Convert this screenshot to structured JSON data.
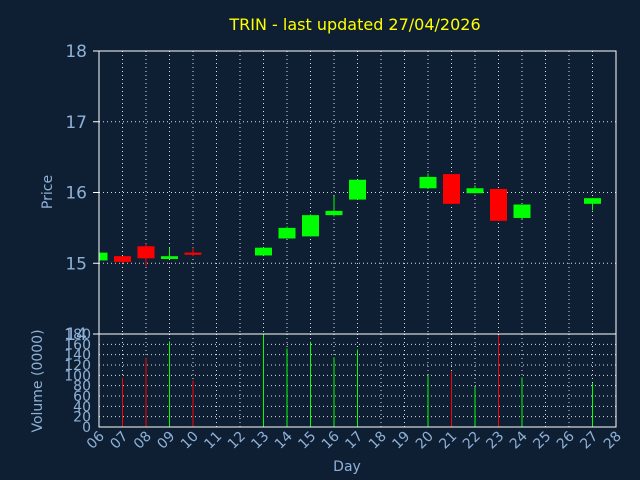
{
  "chart_data": {
    "type": "candlestick",
    "title": "TRIN - last updated 27/04/2026",
    "xlabel": "Day",
    "ylabel": "Price",
    "volume_label": "Volume (0000)",
    "colors": {
      "up": "#00ff00",
      "down": "#ff0000",
      "background": "#0f1f33",
      "title": "#ffff00",
      "text": "#8fb1d6"
    },
    "grid": true,
    "days": [
      "06",
      "07",
      "08",
      "09",
      "10",
      "11",
      "12",
      "13",
      "14",
      "15",
      "16",
      "17",
      "18",
      "19",
      "20",
      "21",
      "22",
      "23",
      "24",
      "25",
      "26",
      "27",
      "28"
    ],
    "price_ylim": [
      14,
      18
    ],
    "price_ticks": [
      "14",
      "15",
      "16",
      "17",
      "18"
    ],
    "volume_ylim": [
      0,
      180
    ],
    "volume_ticks": [
      "0",
      "20",
      "40",
      "60",
      "80",
      "100",
      "120",
      "140",
      "160",
      "180"
    ],
    "candles": [
      {
        "day": "06",
        "open": 15.04,
        "high": 15.16,
        "low": 15.02,
        "close": 15.15,
        "volume": 0
      },
      {
        "day": "07",
        "open": 15.1,
        "high": 15.1,
        "low": 15.0,
        "close": 15.02,
        "volume": 95
      },
      {
        "day": "08",
        "open": 15.24,
        "high": 15.28,
        "low": 14.96,
        "close": 15.07,
        "volume": 133
      },
      {
        "day": "09",
        "open": 15.06,
        "high": 15.22,
        "low": 15.06,
        "close": 15.1,
        "volume": 166
      },
      {
        "day": "10",
        "open": 15.15,
        "high": 15.22,
        "low": 15.1,
        "close": 15.12,
        "volume": 90
      },
      {
        "day": "13",
        "open": 15.11,
        "high": 15.22,
        "low": 15.11,
        "close": 15.22,
        "volume": 180
      },
      {
        "day": "14",
        "open": 15.35,
        "high": 15.52,
        "low": 15.35,
        "close": 15.5,
        "volume": 152
      },
      {
        "day": "15",
        "open": 15.38,
        "high": 15.69,
        "low": 15.38,
        "close": 15.68,
        "volume": 165
      },
      {
        "day": "16",
        "open": 15.68,
        "high": 15.95,
        "low": 15.66,
        "close": 15.74,
        "volume": 135
      },
      {
        "day": "17",
        "open": 15.9,
        "high": 16.18,
        "low": 15.9,
        "close": 16.18,
        "volume": 150
      },
      {
        "day": "20",
        "open": 16.06,
        "high": 16.27,
        "low": 16.05,
        "close": 16.22,
        "volume": 100
      },
      {
        "day": "21",
        "open": 16.26,
        "high": 16.26,
        "low": 15.84,
        "close": 15.84,
        "volume": 107
      },
      {
        "day": "22",
        "open": 15.99,
        "high": 16.1,
        "low": 15.99,
        "close": 16.06,
        "volume": 78
      },
      {
        "day": "23",
        "open": 16.05,
        "high": 16.05,
        "low": 15.6,
        "close": 15.6,
        "volume": 178
      },
      {
        "day": "24",
        "open": 15.64,
        "high": 15.83,
        "low": 15.62,
        "close": 15.83,
        "volume": 96
      },
      {
        "day": "27",
        "open": 15.84,
        "high": 15.92,
        "low": 15.75,
        "close": 15.92,
        "volume": 85
      }
    ]
  }
}
